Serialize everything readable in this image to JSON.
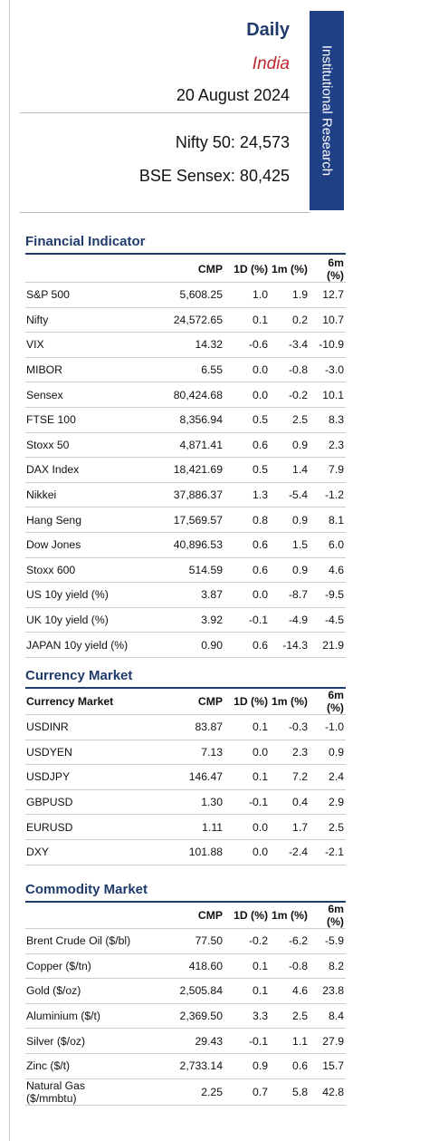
{
  "header": {
    "report_type": "Daily",
    "country": "India",
    "date": "20 August 2024",
    "nifty": "Nifty 50: 24,573",
    "sensex": "BSE Sensex: 80,425",
    "side_band": "Institutional Research",
    "band_color": "#1f3f86"
  },
  "financial": {
    "title": "Financial Indicator",
    "columns": [
      "",
      "CMP",
      "1D (%)",
      "1m (%)",
      "6m (%)"
    ],
    "rows": [
      [
        "S&P 500",
        "5,608.25",
        "1.0",
        "1.9",
        "12.7"
      ],
      [
        "Nifty",
        "24,572.65",
        "0.1",
        "0.2",
        "10.7"
      ],
      [
        "VIX",
        "14.32",
        "-0.6",
        "-3.4",
        "-10.9"
      ],
      [
        "MIBOR",
        "6.55",
        "0.0",
        "-0.8",
        "-3.0"
      ],
      [
        "Sensex",
        "80,424.68",
        "0.0",
        "-0.2",
        "10.1"
      ],
      [
        "FTSE 100",
        "8,356.94",
        "0.5",
        "2.5",
        "8.3"
      ],
      [
        "Stoxx 50",
        "4,871.41",
        "0.6",
        "0.9",
        "2.3"
      ],
      [
        "DAX Index",
        "18,421.69",
        "0.5",
        "1.4",
        "7.9"
      ],
      [
        "Nikkei",
        "37,886.37",
        "1.3",
        "-5.4",
        "-1.2"
      ],
      [
        "Hang Seng",
        "17,569.57",
        "0.8",
        "0.9",
        "8.1"
      ],
      [
        "Dow Jones",
        "40,896.53",
        "0.6",
        "1.5",
        "6.0"
      ],
      [
        "Stoxx 600",
        "514.59",
        "0.6",
        "0.9",
        "4.6"
      ],
      [
        "US 10y yield (%)",
        "3.87",
        "0.0",
        "-8.7",
        "-9.5"
      ],
      [
        "UK 10y yield (%)",
        "3.92",
        "-0.1",
        "-4.9",
        "-4.5"
      ],
      [
        "JAPAN 10y yield (%)",
        "0.90",
        "0.6",
        "-14.3",
        "21.9"
      ]
    ]
  },
  "currency": {
    "title": "Currency Market",
    "columns": [
      "Currency Market",
      "CMP",
      "1D (%)",
      "1m (%)",
      "6m (%)"
    ],
    "rows": [
      [
        "USDINR",
        "83.87",
        "0.1",
        "-0.3",
        "-1.0"
      ],
      [
        "USDYEN",
        "7.13",
        "0.0",
        "2.3",
        "0.9"
      ],
      [
        "USDJPY",
        "146.47",
        "0.1",
        "7.2",
        "2.4"
      ],
      [
        "GBPUSD",
        "1.30",
        "-0.1",
        "0.4",
        "2.9"
      ],
      [
        "EURUSD",
        "1.11",
        "0.0",
        "1.7",
        "2.5"
      ],
      [
        "DXY",
        "101.88",
        "0.0",
        "-2.4",
        "-2.1"
      ]
    ]
  },
  "commodity": {
    "title": "Commodity Market",
    "columns": [
      "",
      "CMP",
      "1D (%)",
      "1m (%)",
      "6m (%)"
    ],
    "rows": [
      [
        "Brent Crude Oil ($/bl)",
        "77.50",
        "-0.2",
        "-6.2",
        "-5.9"
      ],
      [
        "Copper ($/tn)",
        "418.60",
        "0.1",
        "-0.8",
        "8.2"
      ],
      [
        "Gold ($/oz)",
        "2,505.84",
        "0.1",
        "4.6",
        "23.8"
      ],
      [
        "Aluminium ($/t)",
        "2,369.50",
        "3.3",
        "2.5",
        "8.4"
      ],
      [
        "Silver ($/oz)",
        "29.43",
        "-0.1",
        "1.1",
        "27.9"
      ],
      [
        "Zinc ($/t)",
        "2,733.14",
        "0.9",
        "0.6",
        "15.7"
      ],
      [
        "Natural Gas ($/mmbtu)",
        "2.25",
        "0.7",
        "5.8",
        "42.8"
      ]
    ]
  }
}
